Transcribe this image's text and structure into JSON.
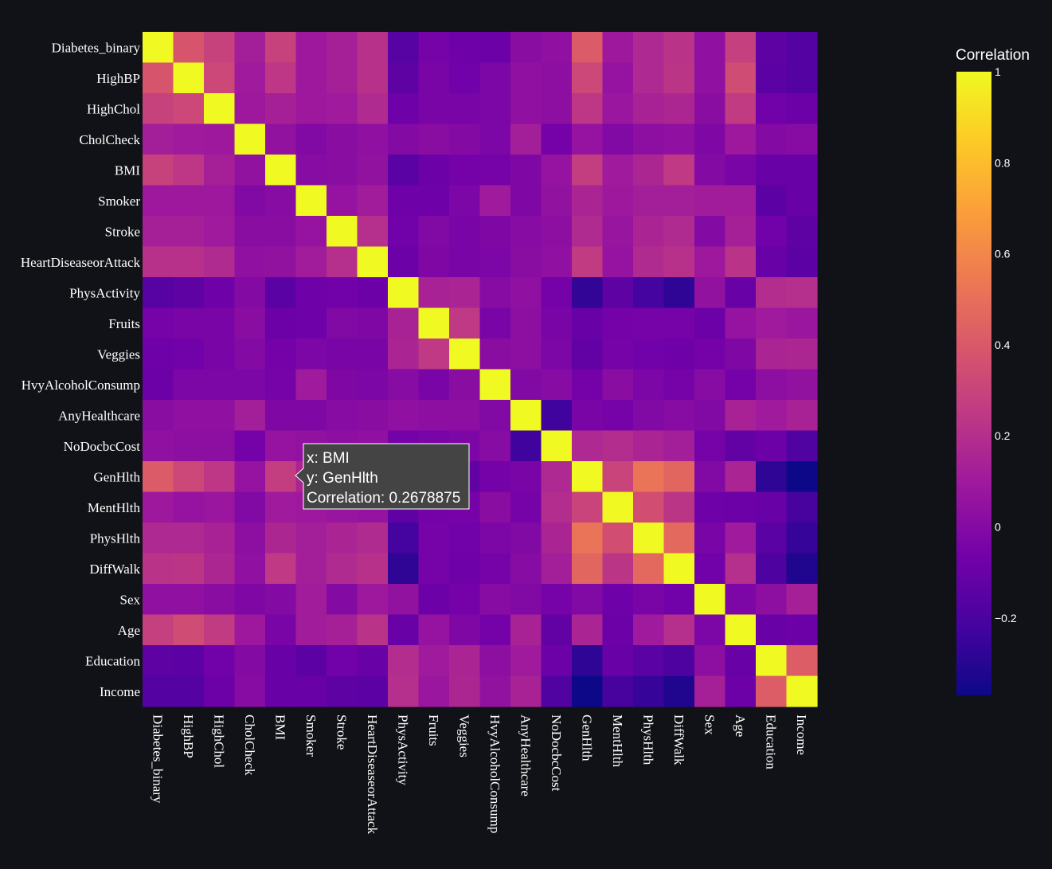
{
  "chart_data": {
    "type": "heatmap",
    "labels": [
      "Diabetes_binary",
      "HighBP",
      "HighChol",
      "CholCheck",
      "BMI",
      "Smoker",
      "Stroke",
      "HeartDiseaseorAttack",
      "PhysActivity",
      "Fruits",
      "Veggies",
      "HvyAlcoholConsump",
      "AnyHealthcare",
      "NoDocbcCost",
      "GenHlth",
      "MentHlth",
      "PhysHlth",
      "DiffWalk",
      "Sex",
      "Age",
      "Education",
      "Income"
    ],
    "values": [
      [
        1.0,
        0.38,
        0.29,
        0.12,
        0.29,
        0.09,
        0.13,
        0.21,
        -0.16,
        -0.05,
        -0.08,
        -0.09,
        0.02,
        0.04,
        0.41,
        0.09,
        0.17,
        0.22,
        0.04,
        0.28,
        -0.13,
        -0.17
      ],
      [
        0.38,
        1.0,
        0.32,
        0.1,
        0.24,
        0.09,
        0.13,
        0.21,
        -0.13,
        -0.04,
        -0.07,
        -0.03,
        0.04,
        0.03,
        0.32,
        0.06,
        0.17,
        0.23,
        0.04,
        0.34,
        -0.14,
        -0.17
      ],
      [
        0.29,
        0.32,
        1.0,
        0.09,
        0.13,
        0.09,
        0.1,
        0.18,
        -0.08,
        -0.04,
        -0.04,
        -0.03,
        0.04,
        0.03,
        0.24,
        0.08,
        0.14,
        0.16,
        0.02,
        0.26,
        -0.07,
        -0.09
      ],
      [
        0.12,
        0.1,
        0.09,
        1.0,
        0.05,
        -0.01,
        0.02,
        0.04,
        0.0,
        0.02,
        0.0,
        -0.03,
        0.12,
        -0.06,
        0.06,
        -0.01,
        0.03,
        0.04,
        -0.02,
        0.09,
        0.0,
        0.01
      ],
      [
        0.29,
        0.24,
        0.13,
        0.05,
        1.0,
        0.01,
        0.02,
        0.05,
        -0.15,
        -0.09,
        -0.06,
        -0.05,
        -0.02,
        0.06,
        0.27,
        0.1,
        0.16,
        0.25,
        0.0,
        -0.04,
        -0.1,
        -0.1
      ],
      [
        0.09,
        0.09,
        0.09,
        -0.01,
        0.01,
        1.0,
        0.06,
        0.11,
        -0.08,
        -0.08,
        -0.03,
        0.1,
        -0.02,
        0.05,
        0.15,
        0.09,
        0.12,
        0.12,
        0.11,
        0.11,
        -0.14,
        -0.1
      ],
      [
        0.13,
        0.13,
        0.1,
        0.02,
        0.02,
        0.06,
        1.0,
        0.2,
        -0.07,
        -0.01,
        -0.04,
        -0.02,
        0.01,
        0.03,
        0.18,
        0.07,
        0.15,
        0.18,
        0.0,
        0.13,
        -0.07,
        -0.13
      ],
      [
        0.21,
        0.21,
        0.18,
        0.04,
        0.05,
        0.11,
        0.2,
        1.0,
        -0.09,
        -0.02,
        -0.04,
        -0.03,
        0.02,
        0.04,
        0.26,
        0.06,
        0.18,
        0.21,
        0.09,
        0.22,
        -0.1,
        -0.14
      ],
      [
        -0.16,
        -0.13,
        -0.08,
        0.0,
        -0.15,
        -0.08,
        -0.07,
        -0.09,
        1.0,
        0.14,
        0.15,
        0.01,
        0.04,
        -0.06,
        -0.27,
        -0.13,
        -0.22,
        -0.28,
        0.05,
        -0.1,
        0.19,
        0.2
      ],
      [
        -0.05,
        -0.04,
        -0.04,
        0.02,
        -0.09,
        -0.08,
        -0.01,
        -0.02,
        0.14,
        1.0,
        0.25,
        -0.04,
        0.03,
        -0.04,
        -0.1,
        -0.06,
        -0.05,
        -0.05,
        -0.09,
        0.06,
        0.1,
        0.08
      ],
      [
        -0.08,
        -0.07,
        -0.04,
        0.0,
        -0.06,
        -0.03,
        -0.04,
        -0.04,
        0.15,
        0.25,
        1.0,
        0.02,
        0.03,
        -0.03,
        -0.12,
        -0.05,
        -0.07,
        -0.08,
        -0.06,
        -0.02,
        0.15,
        0.16
      ],
      [
        -0.09,
        -0.03,
        -0.03,
        -0.03,
        -0.05,
        0.1,
        -0.02,
        -0.03,
        0.01,
        -0.04,
        0.02,
        1.0,
        -0.01,
        0.01,
        -0.06,
        0.02,
        -0.03,
        -0.05,
        0.01,
        -0.06,
        0.03,
        0.05
      ],
      [
        0.02,
        0.04,
        0.04,
        0.12,
        -0.02,
        -0.02,
        0.01,
        0.02,
        0.04,
        0.03,
        0.03,
        -0.01,
        1.0,
        -0.23,
        -0.04,
        -0.05,
        -0.01,
        0.01,
        -0.01,
        0.14,
        0.1,
        0.14
      ],
      [
        0.04,
        0.03,
        0.03,
        -0.06,
        0.06,
        0.05,
        0.03,
        0.04,
        -0.06,
        -0.04,
        -0.03,
        0.01,
        -0.23,
        1.0,
        0.17,
        0.19,
        0.15,
        0.12,
        -0.05,
        -0.12,
        -0.09,
        -0.18
      ],
      [
        0.41,
        0.32,
        0.24,
        0.06,
        0.27,
        0.15,
        0.18,
        0.26,
        -0.27,
        -0.1,
        -0.12,
        -0.06,
        -0.04,
        0.17,
        1.0,
        0.3,
        0.52,
        0.46,
        -0.01,
        0.15,
        -0.28,
        -0.37
      ],
      [
        0.09,
        0.06,
        0.08,
        -0.01,
        0.1,
        0.09,
        0.07,
        0.06,
        -0.13,
        -0.06,
        -0.05,
        0.02,
        -0.05,
        0.19,
        0.3,
        1.0,
        0.35,
        0.23,
        -0.08,
        -0.09,
        -0.1,
        -0.21
      ],
      [
        0.17,
        0.17,
        0.14,
        0.03,
        0.16,
        0.12,
        0.15,
        0.18,
        -0.22,
        -0.05,
        -0.07,
        -0.03,
        -0.01,
        0.15,
        0.52,
        0.35,
        1.0,
        0.47,
        -0.04,
        0.1,
        -0.15,
        -0.26
      ],
      [
        0.22,
        0.23,
        0.16,
        0.04,
        0.25,
        0.12,
        0.18,
        0.21,
        -0.28,
        -0.05,
        -0.08,
        -0.05,
        0.01,
        0.12,
        0.46,
        0.23,
        0.47,
        1.0,
        -0.07,
        0.2,
        -0.19,
        -0.32
      ],
      [
        0.04,
        0.04,
        0.02,
        -0.02,
        0.0,
        0.11,
        0.0,
        0.09,
        0.05,
        -0.09,
        -0.06,
        0.01,
        -0.01,
        -0.05,
        -0.01,
        -0.08,
        -0.04,
        -0.07,
        1.0,
        -0.03,
        0.03,
        0.13
      ],
      [
        0.28,
        0.34,
        0.26,
        0.09,
        -0.04,
        0.11,
        0.13,
        0.22,
        -0.1,
        0.06,
        -0.02,
        -0.06,
        0.14,
        -0.12,
        0.15,
        -0.09,
        0.1,
        0.2,
        -0.03,
        1.0,
        -0.1,
        -0.09
      ],
      [
        -0.13,
        -0.14,
        -0.07,
        0.0,
        -0.1,
        -0.14,
        -0.07,
        -0.1,
        0.19,
        0.1,
        0.15,
        0.03,
        0.1,
        -0.09,
        -0.28,
        -0.1,
        -0.15,
        -0.19,
        0.03,
        -0.1,
        1.0,
        0.42
      ],
      [
        -0.17,
        -0.17,
        -0.09,
        0.01,
        -0.1,
        -0.1,
        -0.13,
        -0.14,
        0.2,
        0.08,
        0.16,
        0.05,
        0.14,
        -0.18,
        -0.37,
        -0.21,
        -0.26,
        -0.32,
        0.13,
        -0.09,
        0.42,
        1.0
      ]
    ],
    "colorbar": {
      "title": "Correlation",
      "ticks": [
        "1",
        "0.8",
        "0.6",
        "0.4",
        "0.2",
        "0",
        "−0.2"
      ],
      "tick_values": [
        1,
        0.8,
        0.6,
        0.4,
        0.2,
        0,
        -0.2
      ],
      "range": [
        -0.37,
        1
      ]
    },
    "colorscale": [
      "#0d0887",
      "#46039f",
      "#7201a8",
      "#9c179e",
      "#bd3786",
      "#d8576b",
      "#ed7953",
      "#fb9f3a",
      "#fdca26",
      "#f0f921"
    ],
    "tooltip": {
      "x_line": "x: BMI",
      "y_line": "y: GenHlth",
      "value_line": "Correlation: 0.2678875"
    }
  },
  "colors": {
    "background": "#111217",
    "text": "#ffffff",
    "tooltip_bg": "#444444",
    "tooltip_border": "#ffffff"
  }
}
